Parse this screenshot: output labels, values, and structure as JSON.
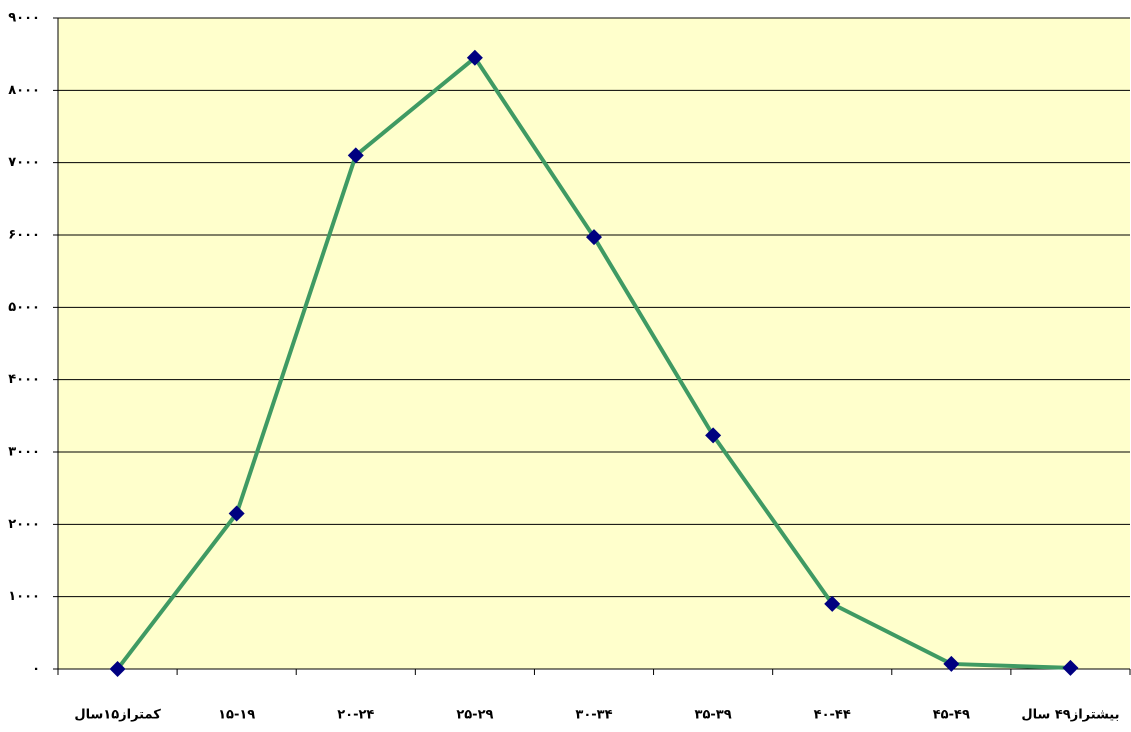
{
  "chart_data": {
    "type": "line",
    "categories": [
      "کمتراز۱۵سال",
      "۱۵-۱۹",
      "۲۰-۲۴",
      "۲۵-۲۹",
      "۳۰-۳۴",
      "۳۵-۳۹",
      "۴۰-۴۴",
      "۴۵-۴۹",
      "بیشتراز۴۹ سال"
    ],
    "values": [
      0,
      2150,
      7100,
      8450,
      5970,
      3230,
      900,
      70,
      15
    ],
    "color": "#3f9a63",
    "marker_color": "#000080",
    "ylim": [
      0,
      9000
    ],
    "yticks": [
      {
        "value": 0,
        "label": "۰"
      },
      {
        "value": 1000,
        "label": "۱۰۰۰"
      },
      {
        "value": 2000,
        "label": "۲۰۰۰"
      },
      {
        "value": 3000,
        "label": "۳۰۰۰"
      },
      {
        "value": 4000,
        "label": "۴۰۰۰"
      },
      {
        "value": 5000,
        "label": "۵۰۰۰"
      },
      {
        "value": 6000,
        "label": "۶۰۰۰"
      },
      {
        "value": 7000,
        "label": "۷۰۰۰"
      },
      {
        "value": 8000,
        "label": "۸۰۰۰"
      },
      {
        "value": 9000,
        "label": "۹۰۰۰"
      }
    ],
    "grid": true
  }
}
